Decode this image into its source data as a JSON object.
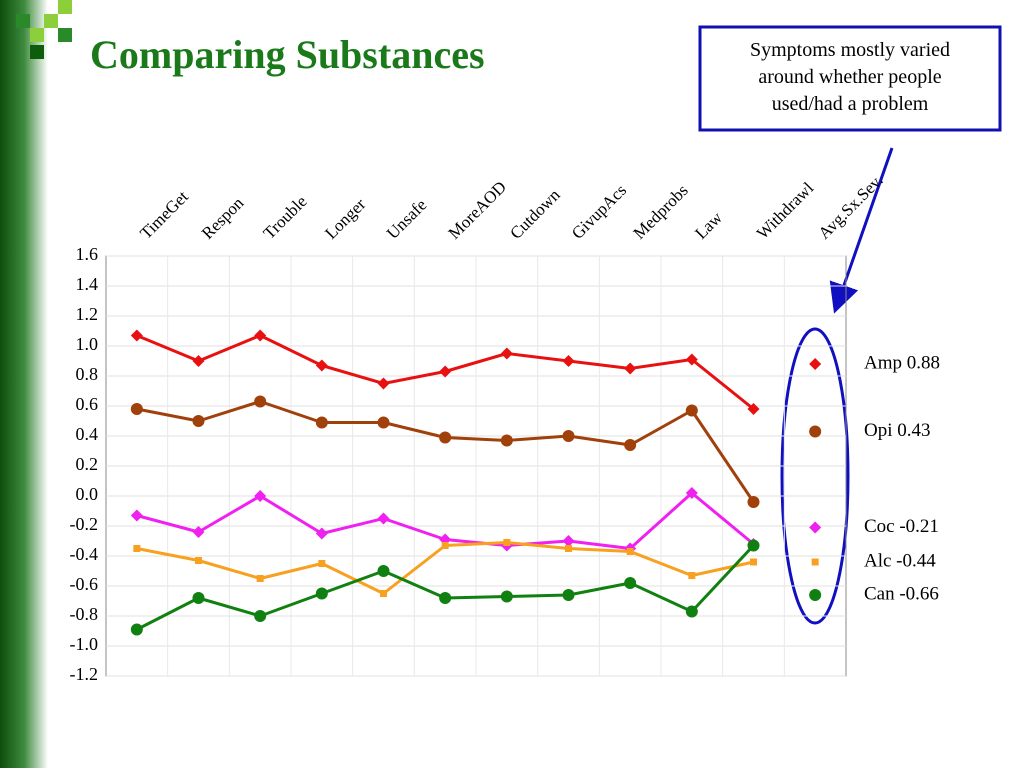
{
  "chart_data": {
    "type": "line",
    "title": "Comparing Substances",
    "annotation": [
      "Symptoms mostly varied",
      "around whether people",
      "used/had a problem"
    ],
    "categories": [
      "TimeGet",
      "Respon",
      "Trouble",
      "Longer",
      "Unsafe",
      "MoreAOD",
      "Cutdown",
      "GivupAcs",
      "Medprobs",
      "Law",
      "Withdrawl",
      "Avg.Sx.Sev."
    ],
    "series": [
      {
        "name": "Amp 0.88",
        "color": "#e81010",
        "marker": "diamond",
        "values": [
          1.07,
          0.9,
          1.07,
          0.87,
          0.75,
          0.83,
          0.95,
          0.9,
          0.85,
          0.91,
          0.58,
          0.88
        ]
      },
      {
        "name": "Opi 0.43",
        "color": "#a0400a",
        "marker": "circle",
        "values": [
          0.58,
          0.5,
          0.63,
          0.49,
          0.49,
          0.39,
          0.37,
          0.4,
          0.34,
          0.57,
          -0.04,
          0.43
        ]
      },
      {
        "name": "Coc -0.21",
        "color": "#f020f0",
        "marker": "diamond",
        "values": [
          -0.13,
          -0.24,
          0,
          -0.25,
          -0.15,
          -0.29,
          -0.33,
          -0.3,
          -0.35,
          0.02,
          -0.32,
          -0.21
        ]
      },
      {
        "name": "Alc -0.44",
        "color": "#f8a020",
        "marker": "square",
        "values": [
          -0.35,
          -0.43,
          -0.55,
          -0.45,
          -0.65,
          -0.33,
          -0.31,
          -0.35,
          -0.37,
          -0.53,
          -0.44,
          -0.44
        ]
      },
      {
        "name": "Can -0.66",
        "color": "#108010",
        "marker": "circle",
        "values": [
          -0.89,
          -0.68,
          -0.8,
          -0.65,
          -0.5,
          -0.68,
          -0.67,
          -0.66,
          -0.58,
          -0.77,
          -0.33,
          -0.66
        ]
      }
    ],
    "ylim": [
      -1.2,
      1.6
    ],
    "yticks": [
      1.6,
      1.4,
      1.2,
      {
        "value": 1,
        "label": "1.0"
      },
      0.8,
      0.6,
      0.4,
      0.2,
      {
        "value": 0,
        "label": "0.0"
      },
      -0.2,
      -0.4,
      -0.6,
      -0.8,
      {
        "value": -1,
        "label": "-1.0"
      },
      -1.2
    ],
    "grid": true
  }
}
